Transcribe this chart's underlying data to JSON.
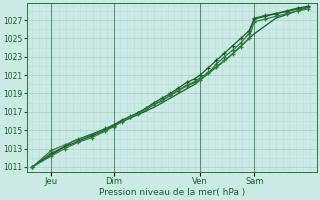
{
  "xlabel": "Pression niveau de la mer( hPa )",
  "background_color": "#cceae4",
  "grid_color_major": "#aacccc",
  "grid_color_minor": "#bbdddd",
  "line_color_dark": "#1a5c2a",
  "line_color_mid": "#2e7d3e",
  "ylim": [
    1010.5,
    1028.8
  ],
  "yticks": [
    1011,
    1013,
    1015,
    1017,
    1019,
    1021,
    1023,
    1025,
    1027
  ],
  "xtick_labels": [
    "Jeu",
    "Dim",
    "Ven",
    "Sam"
  ],
  "xtick_positions": [
    0.07,
    0.3,
    0.62,
    0.82
  ],
  "xlim": [
    -0.02,
    1.05
  ],
  "series1_x": [
    0.0,
    0.07,
    0.12,
    0.17,
    0.22,
    0.27,
    0.3,
    0.33,
    0.36,
    0.39,
    0.42,
    0.45,
    0.48,
    0.51,
    0.54,
    0.57,
    0.6,
    0.62,
    0.65,
    0.68,
    0.71,
    0.74,
    0.77,
    0.8,
    0.82,
    0.86,
    0.9,
    0.94,
    0.98,
    1.02
  ],
  "series1_y": [
    1011.0,
    1012.8,
    1013.4,
    1014.0,
    1014.5,
    1015.2,
    1015.6,
    1016.1,
    1016.5,
    1016.9,
    1017.3,
    1017.8,
    1018.2,
    1018.8,
    1019.3,
    1019.8,
    1020.2,
    1020.5,
    1021.2,
    1022.2,
    1023.0,
    1023.7,
    1024.5,
    1025.5,
    1027.2,
    1027.5,
    1027.7,
    1027.9,
    1028.2,
    1028.4
  ],
  "series2_x": [
    0.0,
    0.07,
    0.12,
    0.17,
    0.22,
    0.27,
    0.3,
    0.33,
    0.36,
    0.39,
    0.42,
    0.45,
    0.48,
    0.51,
    0.54,
    0.57,
    0.6,
    0.62,
    0.65,
    0.68,
    0.71,
    0.74,
    0.77,
    0.8,
    0.82,
    0.86,
    0.9,
    0.94,
    0.98,
    1.02
  ],
  "series2_y": [
    1011.0,
    1012.5,
    1013.2,
    1013.8,
    1014.4,
    1015.0,
    1015.5,
    1016.0,
    1016.4,
    1016.9,
    1017.4,
    1018.0,
    1018.5,
    1019.0,
    1019.6,
    1020.2,
    1020.6,
    1021.0,
    1021.8,
    1022.6,
    1023.4,
    1024.2,
    1025.0,
    1025.8,
    1027.1,
    1027.4,
    1027.7,
    1028.0,
    1028.3,
    1028.5
  ],
  "series3_x": [
    0.0,
    0.07,
    0.12,
    0.17,
    0.22,
    0.27,
    0.3,
    0.33,
    0.36,
    0.39,
    0.42,
    0.45,
    0.48,
    0.51,
    0.54,
    0.57,
    0.6,
    0.62,
    0.65,
    0.68,
    0.71,
    0.74,
    0.77,
    0.8,
    0.82,
    0.86,
    0.9,
    0.94,
    0.98,
    1.02
  ],
  "series3_y": [
    1011.0,
    1012.2,
    1013.0,
    1013.7,
    1014.2,
    1014.9,
    1015.4,
    1015.9,
    1016.4,
    1016.8,
    1017.3,
    1017.8,
    1018.3,
    1018.8,
    1019.4,
    1019.9,
    1020.3,
    1020.7,
    1021.3,
    1021.9,
    1022.6,
    1023.3,
    1024.1,
    1025.0,
    1026.8,
    1027.1,
    1027.4,
    1027.7,
    1028.0,
    1028.2
  ],
  "series4_x": [
    0.0,
    0.15,
    0.3,
    0.45,
    0.6,
    0.72,
    0.82,
    0.9,
    1.02
  ],
  "series4_y": [
    1011.0,
    1013.8,
    1015.5,
    1017.5,
    1020.0,
    1022.8,
    1025.5,
    1027.2,
    1028.4
  ]
}
